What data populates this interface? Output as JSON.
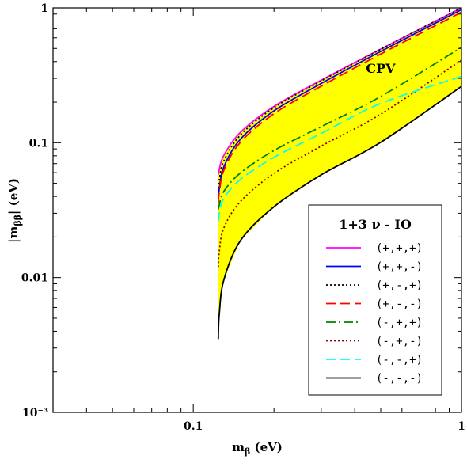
{
  "chart_data": {
    "type": "line",
    "title": "",
    "xlabel": "mβ (eV)",
    "ylabel": "|mββ| (eV)",
    "xscale": "log",
    "yscale": "log",
    "xlim": [
      0.03,
      1
    ],
    "ylim": [
      0.001,
      1
    ],
    "x_ticks": [
      {
        "value": 0.1,
        "label": "0.1"
      },
      {
        "value": 1,
        "label": "1"
      }
    ],
    "y_ticks": [
      {
        "value": 0.001,
        "label": "10⁻³"
      },
      {
        "value": 0.01,
        "label": "0.01"
      },
      {
        "value": 0.1,
        "label": "0.1"
      },
      {
        "value": 1,
        "label": "1"
      }
    ],
    "grid": false,
    "region": {
      "name": "allowed",
      "color": "#ffff00",
      "x": [
        0.124,
        0.125,
        0.13,
        0.15,
        0.2,
        0.3,
        0.5,
        1.0
      ],
      "y_low": [
        0.0035,
        0.0053,
        0.0096,
        0.0188,
        0.0335,
        0.0578,
        0.1007,
        0.262
      ],
      "y_high": [
        0.058,
        0.0632,
        0.0806,
        0.1195,
        0.186,
        0.291,
        0.495,
        1.0
      ]
    },
    "annotation": {
      "text": "CPV",
      "x": 0.5,
      "y": 0.33
    },
    "legend": {
      "title": "1+3 ν - IO",
      "position": "bottom-right"
    },
    "series": [
      {
        "name": "(+,+,+)",
        "color": "#ff00ff",
        "dash": "solid",
        "x": [
          0.124,
          0.125,
          0.13,
          0.15,
          0.2,
          0.3,
          0.5,
          1.0
        ],
        "y": [
          0.058,
          0.0632,
          0.0806,
          0.1195,
          0.186,
          0.291,
          0.495,
          1.0
        ]
      },
      {
        "name": "(+,+,-)",
        "color": "#0000ff",
        "dash": "solid",
        "x": [
          0.124,
          0.125,
          0.13,
          0.15,
          0.2,
          0.3,
          0.5,
          1.0
        ],
        "y": [
          0.038,
          0.0452,
          0.0662,
          0.1063,
          0.1724,
          0.2749,
          0.4753,
          0.97
        ]
      },
      {
        "name": "(+,-,+)",
        "color": "#000000",
        "dash": "dotted",
        "x": [
          0.124,
          0.125,
          0.13,
          0.15,
          0.2,
          0.3,
          0.5,
          1.0
        ],
        "y": [
          0.046,
          0.0529,
          0.0731,
          0.1141,
          0.182,
          0.287,
          0.493,
          1.0
        ]
      },
      {
        "name": "(+,-,-)",
        "color": "#ff0000",
        "dash": "dashed",
        "x": [
          0.124,
          0.125,
          0.13,
          0.15,
          0.2,
          0.3,
          0.5,
          1.0
        ],
        "y": [
          0.036,
          0.0425,
          0.0624,
          0.1009,
          0.1643,
          0.2626,
          0.455,
          0.93
        ]
      },
      {
        "name": "(-,+,+)",
        "color": "#008000",
        "dash": "dashdot",
        "x": [
          0.124,
          0.125,
          0.13,
          0.15,
          0.2,
          0.3,
          0.5,
          1.0
        ],
        "y": [
          0.032,
          0.0345,
          0.0436,
          0.0598,
          0.0876,
          0.1317,
          0.2204,
          0.51
        ]
      },
      {
        "name": "(-,+,-)",
        "color": "#8b0000",
        "dash": "dotted",
        "x": [
          0.124,
          0.125,
          0.13,
          0.15,
          0.2,
          0.3,
          0.5,
          1.0
        ],
        "y": [
          0.012,
          0.0155,
          0.0233,
          0.0367,
          0.0592,
          0.0944,
          0.1629,
          0.41
        ]
      },
      {
        "name": "(-,-,+)",
        "color": "#00ffff",
        "dash": "dashed",
        "x": [
          0.124,
          0.125,
          0.13,
          0.15,
          0.2,
          0.3,
          0.5,
          1.0
        ],
        "y": [
          0.026,
          0.0299,
          0.0387,
          0.0534,
          0.0779,
          0.1172,
          0.1956,
          0.31
        ]
      },
      {
        "name": "(-,-,-)",
        "color": "#000000",
        "dash": "solid",
        "x": [
          0.124,
          0.125,
          0.13,
          0.15,
          0.2,
          0.3,
          0.5,
          1.0
        ],
        "y": [
          0.0035,
          0.0053,
          0.0096,
          0.0188,
          0.0335,
          0.0578,
          0.1007,
          0.262
        ]
      }
    ]
  }
}
